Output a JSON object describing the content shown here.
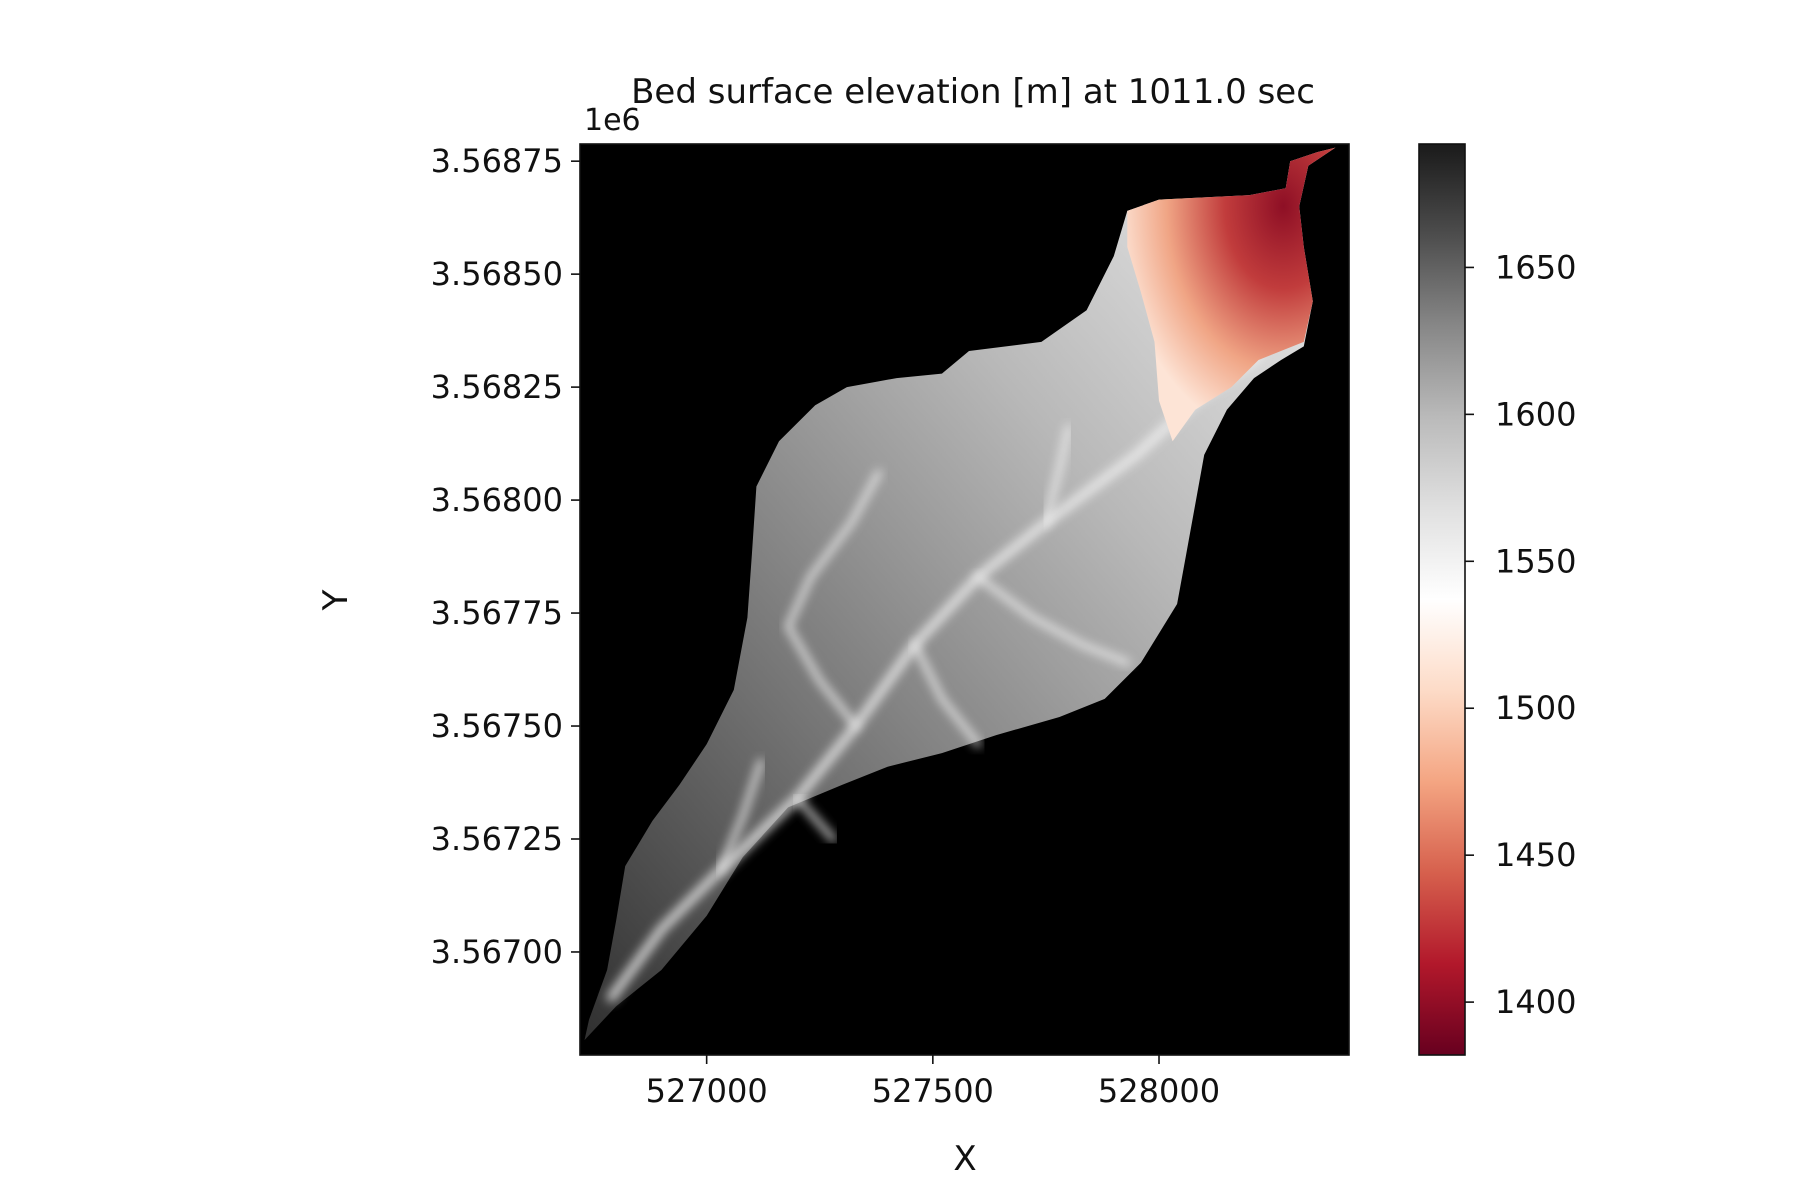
{
  "chart_data": {
    "type": "heatmap",
    "title": "Bed surface elevation [m] at 1011.0 sec",
    "xlabel": "X",
    "ylabel": "Y",
    "y_offset_label": "1e6",
    "xlim": [
      526720,
      528420
    ],
    "ylim": [
      3.566772,
      3.568788
    ],
    "x_ticks": [
      {
        "value": 527000,
        "label": "527000"
      },
      {
        "value": 527500,
        "label": "527500"
      },
      {
        "value": 528000,
        "label": "528000"
      }
    ],
    "y_ticks": [
      {
        "value": 3.567,
        "label": "3.56700"
      },
      {
        "value": 3.56725,
        "label": "3.56725"
      },
      {
        "value": 3.5675,
        "label": "3.56750"
      },
      {
        "value": 3.56775,
        "label": "3.56775"
      },
      {
        "value": 3.568,
        "label": "3.56800"
      },
      {
        "value": 3.56825,
        "label": "3.56825"
      },
      {
        "value": 3.5685,
        "label": "3.56850"
      },
      {
        "value": 3.56875,
        "label": "3.56875"
      }
    ],
    "colorbar": {
      "colormap": "RdGy",
      "range": [
        1382,
        1692
      ],
      "ticks": [
        {
          "value": 1400,
          "label": "1400"
        },
        {
          "value": 1450,
          "label": "1450"
        },
        {
          "value": 1500,
          "label": "1500"
        },
        {
          "value": 1550,
          "label": "1550"
        },
        {
          "value": 1600,
          "label": "1600"
        },
        {
          "value": 1650,
          "label": "1650"
        }
      ],
      "stops": [
        {
          "offset": 0.0,
          "color": "#67001f"
        },
        {
          "offset": 0.1,
          "color": "#b2182b"
        },
        {
          "offset": 0.2,
          "color": "#d6604d"
        },
        {
          "offset": 0.3,
          "color": "#f4a582"
        },
        {
          "offset": 0.4,
          "color": "#fddbc7"
        },
        {
          "offset": 0.5,
          "color": "#ffffff"
        },
        {
          "offset": 0.6,
          "color": "#e0e0e0"
        },
        {
          "offset": 0.7,
          "color": "#bababa"
        },
        {
          "offset": 0.8,
          "color": "#878787"
        },
        {
          "offset": 0.9,
          "color": "#4d4d4d"
        },
        {
          "offset": 1.0,
          "color": "#1a1a1a"
        }
      ]
    },
    "background_color": "#000000",
    "catchment_outline": [
      [
        526730,
        3.566805
      ],
      [
        526800,
        3.56688
      ],
      [
        526900,
        3.56696
      ],
      [
        527000,
        3.56708
      ],
      [
        527080,
        3.56721
      ],
      [
        527180,
        3.56732
      ],
      [
        527300,
        3.56737
      ],
      [
        527400,
        3.56741
      ],
      [
        527520,
        3.56744
      ],
      [
        527640,
        3.56748
      ],
      [
        527780,
        3.56752
      ],
      [
        527880,
        3.56756
      ],
      [
        527960,
        3.56764
      ],
      [
        528040,
        3.56777
      ],
      [
        528060,
        3.56788
      ],
      [
        528080,
        3.56799
      ],
      [
        528100,
        3.5681
      ],
      [
        528150,
        3.5682
      ],
      [
        528210,
        3.56827
      ],
      [
        528270,
        3.56831
      ],
      [
        528320,
        3.56834
      ],
      [
        528340,
        3.56844
      ],
      [
        528320,
        3.56856
      ],
      [
        528310,
        3.56865
      ],
      [
        528330,
        3.56874
      ],
      [
        528390,
        3.56878
      ],
      [
        528350,
        3.56877
      ],
      [
        528290,
        3.56875
      ],
      [
        528280,
        3.56869
      ],
      [
        528200,
        3.568675
      ],
      [
        528000,
        3.568665
      ],
      [
        527930,
        3.56864
      ],
      [
        527900,
        3.56854
      ],
      [
        527840,
        3.56842
      ],
      [
        527740,
        3.56835
      ],
      [
        527580,
        3.56833
      ],
      [
        527520,
        3.56828
      ],
      [
        527420,
        3.56827
      ],
      [
        527310,
        3.56825
      ],
      [
        527240,
        3.56821
      ],
      [
        527160,
        3.56813
      ],
      [
        527110,
        3.56803
      ],
      [
        527100,
        3.56788
      ],
      [
        527090,
        3.56774
      ],
      [
        527060,
        3.56758
      ],
      [
        527000,
        3.56746
      ],
      [
        526940,
        3.56737
      ],
      [
        526880,
        3.56729
      ],
      [
        526820,
        3.56719
      ],
      [
        526800,
        3.56707
      ],
      [
        526780,
        3.56696
      ],
      [
        526740,
        3.56685
      ]
    ],
    "red_region": [
      [
        527930,
        3.56864
      ],
      [
        528000,
        3.568665
      ],
      [
        528200,
        3.568675
      ],
      [
        528280,
        3.56869
      ],
      [
        528290,
        3.56875
      ],
      [
        528350,
        3.56877
      ],
      [
        528390,
        3.56878
      ],
      [
        528330,
        3.56874
      ],
      [
        528310,
        3.56865
      ],
      [
        528320,
        3.56856
      ],
      [
        528340,
        3.56844
      ],
      [
        528320,
        3.56835
      ],
      [
        528220,
        3.56831
      ],
      [
        528160,
        3.56825
      ],
      [
        528080,
        3.5682
      ],
      [
        528030,
        3.56813
      ],
      [
        528000,
        3.56822
      ],
      [
        527990,
        3.56835
      ],
      [
        527960,
        3.56846
      ],
      [
        527930,
        3.56856
      ]
    ],
    "channels": [
      [
        [
          526790,
          3.5669
        ],
        [
          526900,
          3.56705
        ],
        [
          527030,
          3.56718
        ],
        [
          527200,
          3.56734
        ],
        [
          527330,
          3.5675
        ],
        [
          527460,
          3.56768
        ],
        [
          527600,
          3.56783
        ],
        [
          527750,
          3.56795
        ],
        [
          527950,
          3.5681
        ],
        [
          528080,
          3.56822
        ],
        [
          528220,
          3.56832
        ]
      ],
      [
        [
          527330,
          3.5675
        ],
        [
          527250,
          3.5676
        ],
        [
          527180,
          3.56772
        ],
        [
          527230,
          3.56783
        ],
        [
          527320,
          3.56795
        ],
        [
          527380,
          3.56806
        ]
      ],
      [
        [
          527460,
          3.56768
        ],
        [
          527520,
          3.56756
        ],
        [
          527600,
          3.56746
        ]
      ],
      [
        [
          527600,
          3.56783
        ],
        [
          527720,
          3.56774
        ],
        [
          527830,
          3.56768
        ],
        [
          527930,
          3.56764
        ]
      ],
      [
        [
          527750,
          3.56795
        ],
        [
          527780,
          3.56807
        ],
        [
          527800,
          3.56816
        ]
      ],
      [
        [
          527200,
          3.56734
        ],
        [
          527280,
          3.56725
        ]
      ],
      [
        [
          527030,
          3.56718
        ],
        [
          527080,
          3.5673
        ],
        [
          527120,
          3.56742
        ]
      ]
    ]
  }
}
